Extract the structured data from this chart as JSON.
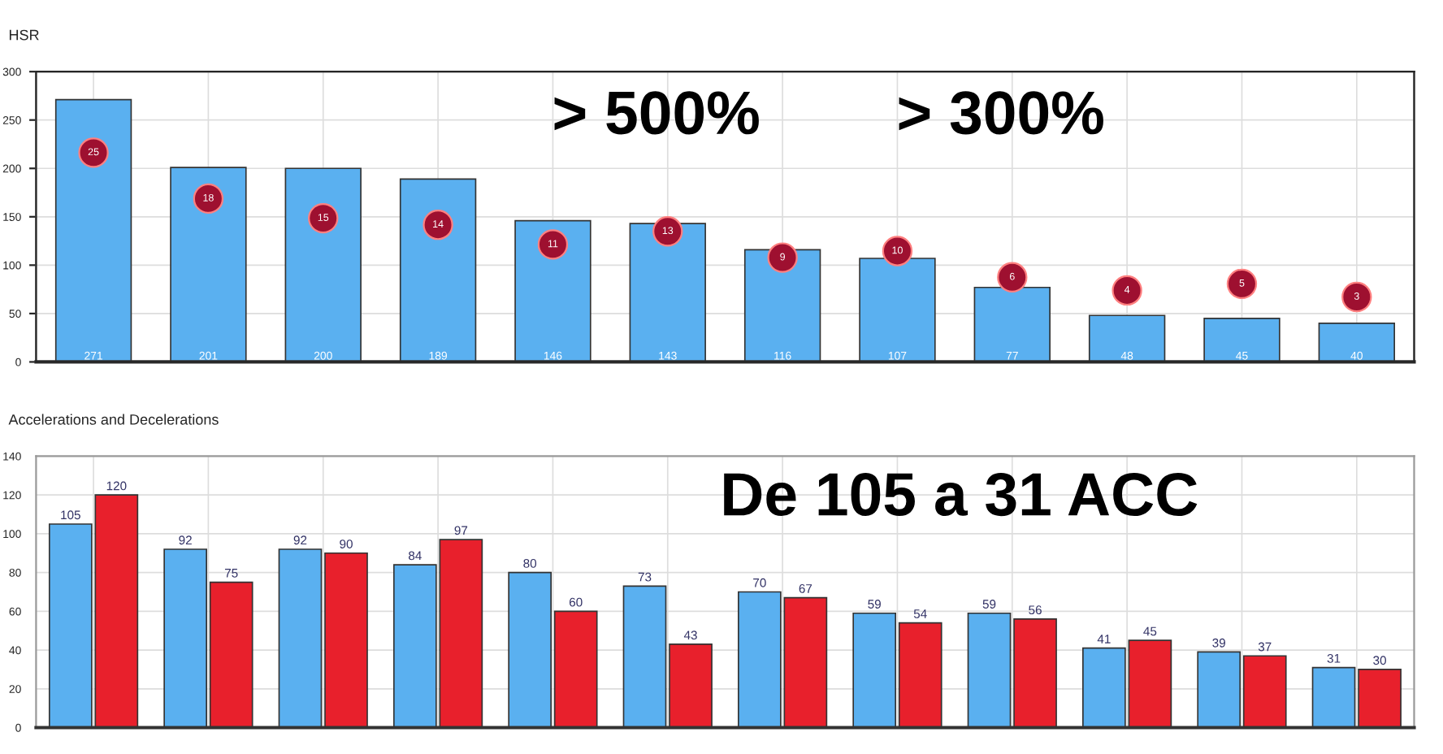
{
  "chart_data": [
    {
      "type": "bar",
      "title": "HSR",
      "categories": [
        null,
        null,
        null,
        null,
        null,
        null,
        null,
        null,
        null,
        null,
        null,
        null
      ],
      "series": [
        {
          "type": "bar",
          "color": "#5ab0f0",
          "values": [
            271,
            201,
            200,
            189,
            146,
            143,
            116,
            107,
            77,
            48,
            45,
            40
          ]
        },
        {
          "type": "scatter",
          "axis": "y2",
          "color": "#9e1030",
          "values": [
            25,
            18,
            15,
            14,
            11,
            13,
            9,
            10,
            6,
            4,
            5,
            3
          ]
        }
      ],
      "ylim": [
        0,
        300
      ],
      "yticks": [
        0,
        50,
        100,
        150,
        200,
        250,
        300
      ],
      "y2lim": [
        -6.9,
        37.35
      ],
      "tick_labels": "y",
      "grid": true,
      "marker": "circle",
      "data_labels": true,
      "annotations": [
        "> 500%",
        "> 300%"
      ]
    },
    {
      "type": "bar",
      "title": "Accelerations and Decelerations",
      "categories": [
        null,
        null,
        null,
        null,
        null,
        null,
        null,
        null,
        null,
        null,
        null,
        null
      ],
      "series": [
        {
          "color": "#5ab0f0",
          "values": [
            105,
            92,
            92,
            84,
            80,
            73,
            70,
            59,
            59,
            41,
            39,
            31
          ]
        },
        {
          "color": "#e8202c",
          "values": [
            120,
            75,
            90,
            97,
            60,
            43,
            67,
            54,
            56,
            45,
            37,
            30
          ]
        }
      ],
      "ylim": [
        0,
        140
      ],
      "yticks": [
        0,
        20,
        40,
        60,
        80,
        100,
        120,
        140
      ],
      "tick_labels": "y",
      "grid": true,
      "data_labels": true,
      "annotations": [
        "De 105 a 31 ACC"
      ]
    }
  ]
}
